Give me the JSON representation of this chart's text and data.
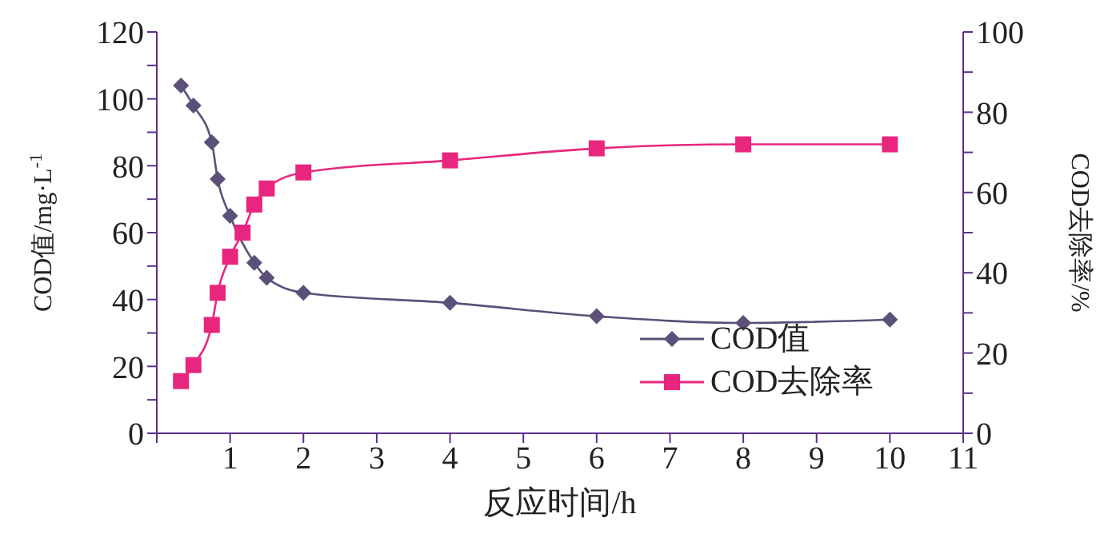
{
  "chart_data": {
    "type": "line",
    "xlabel": "反应时间/h",
    "ylabel": "COD值/mg·L$^{-1}$",
    "y2label": "COD去除率/%",
    "xlim": [
      0,
      11
    ],
    "xticks": [
      {
        "value": 0,
        "label": null
      },
      1,
      2,
      3,
      4,
      5,
      6,
      7,
      8,
      9,
      10,
      11
    ],
    "ylim": [
      0,
      120
    ],
    "yticks": [
      0,
      {
        "value": 10,
        "label": null
      },
      20,
      {
        "value": 30,
        "label": null
      },
      40,
      {
        "value": 50,
        "label": null
      },
      60,
      {
        "value": 70,
        "label": null
      },
      80,
      {
        "value": 90,
        "label": null
      },
      100,
      {
        "value": 110,
        "label": null
      },
      120
    ],
    "y2lim": [
      0,
      100
    ],
    "y2ticks": [
      0,
      {
        "value": 10,
        "label": null
      },
      20,
      {
        "value": 30,
        "label": null
      },
      40,
      {
        "value": 50,
        "label": null
      },
      60,
      {
        "value": 70,
        "label": null
      },
      80,
      {
        "value": 90,
        "label": null
      },
      100
    ],
    "legend": "bottom right",
    "series": [
      {
        "name": "COD值",
        "color": "#5a5078",
        "marker": "diamond",
        "x": [
          0.33,
          0.5,
          0.75,
          0.83,
          1,
          1.33,
          1.5,
          2,
          4,
          6,
          8,
          10
        ],
        "values": [
          104,
          98,
          87,
          76,
          65,
          51,
          46.5,
          42,
          39,
          35,
          33,
          34
        ]
      },
      {
        "name": "COD去除率",
        "color": "#e8267e",
        "marker": "square",
        "axis": "y2",
        "x": [
          0.33,
          0.5,
          0.75,
          0.83,
          1,
          1.17,
          1.33,
          1.5,
          2,
          4,
          6,
          8,
          10
        ],
        "values": [
          13,
          17,
          27,
          35,
          44,
          50,
          57,
          61,
          65,
          68,
          71,
          72,
          72
        ]
      }
    ]
  }
}
